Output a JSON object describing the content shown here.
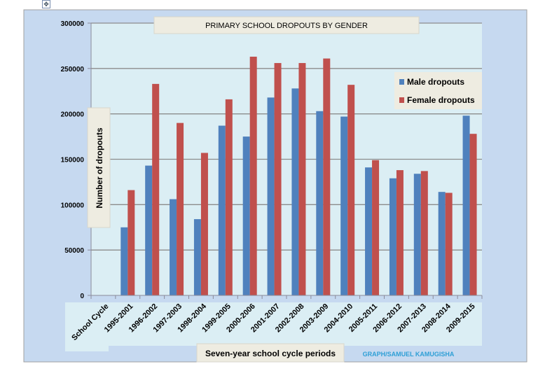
{
  "chart_data": {
    "type": "bar",
    "title": "PRIMARY SCHOOL DROPOUTS BY GENDER",
    "xlabel": "Seven-year school cycle periods",
    "ylabel": "Number of dropouts",
    "credit": "GRAPH/SAMUEL KAMUGISHA",
    "first_category_label": "School Cycle",
    "categories": [
      "1995-2001",
      "1996-2002",
      "1997-2003",
      "1998-2004",
      "1999-2005",
      "2000-2006",
      "2001-2007",
      "2002-2008",
      "2003-2009",
      "2004-2010",
      "2005-2011",
      "2006-2012",
      "2007-2013",
      "2008-2014",
      "2009-2015"
    ],
    "series": [
      {
        "name": "Male dropouts",
        "color": "#4f81bd",
        "values": [
          75000,
          143000,
          106000,
          84000,
          187000,
          175000,
          218000,
          228000,
          203000,
          197000,
          141000,
          129000,
          134000,
          114000,
          198000
        ]
      },
      {
        "name": "Female dropouts",
        "color": "#c0504d",
        "values": [
          116000,
          233000,
          190000,
          157000,
          216000,
          263000,
          256000,
          256000,
          261000,
          232000,
          149000,
          138000,
          137000,
          113000,
          178000
        ]
      }
    ],
    "ylim": [
      0,
      300000
    ],
    "yticks": [
      "0",
      "50000",
      "100000",
      "150000",
      "200000",
      "250000",
      "300000"
    ],
    "grid": true,
    "legend_position": "top-right"
  }
}
